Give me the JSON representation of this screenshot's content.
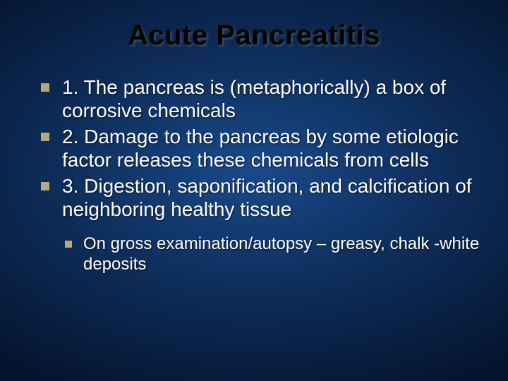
{
  "slide": {
    "title": "Acute Pancreatitis",
    "title_color": "#000000",
    "title_fontsize": 40,
    "background_gradient": {
      "center": "#1a4a8a",
      "mid": "#0d2d5a",
      "outer": "#051530",
      "edge": "#020818"
    },
    "bullet_marker_color": "#b8a878",
    "body_text_color": "#ffffff",
    "body_fontsize": 28,
    "sub_fontsize": 24,
    "items": [
      {
        "text": "1. The pancreas is (metaphorically) a box of corrosive chemicals"
      },
      {
        "text": "2. Damage to the pancreas by some etiologic factor releases these chemicals from cells"
      },
      {
        "text": "3. Digestion, saponification, and calcification of neighboring healthy tissue"
      }
    ],
    "sub_items": [
      {
        "text": "On gross examination/autopsy – greasy, chalk -white deposits"
      }
    ]
  }
}
